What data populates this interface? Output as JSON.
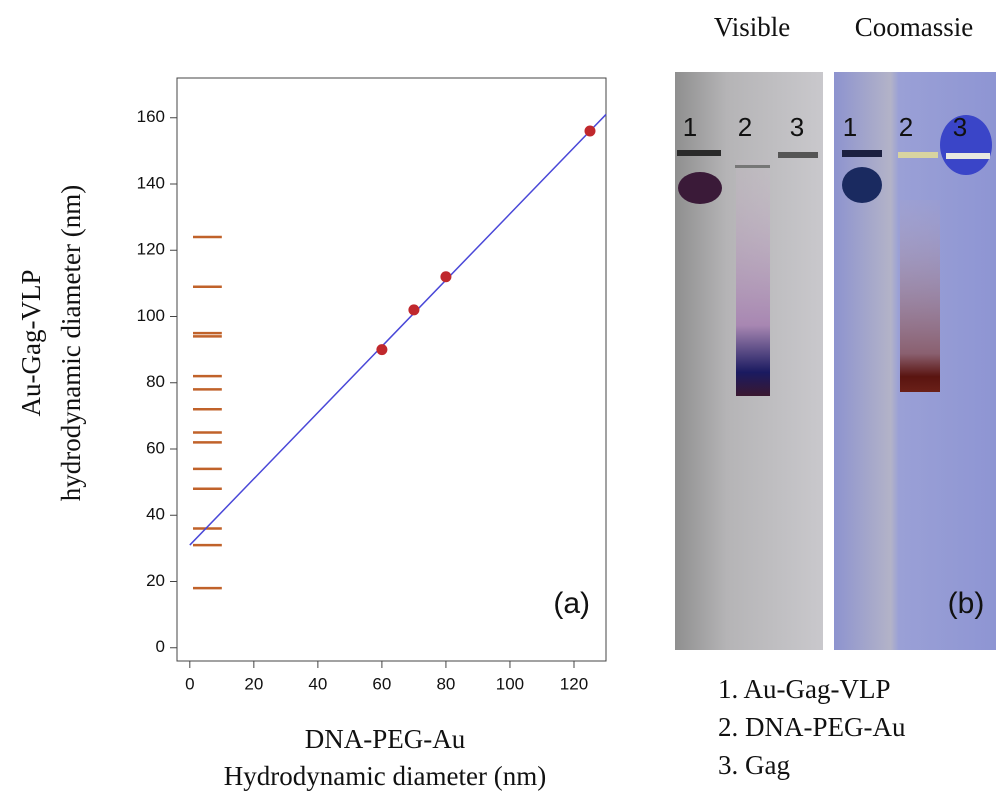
{
  "chart_data": {
    "type": "scatter",
    "y_label": [
      "Au-Gag-VLP",
      "hydrodynamic diameter (nm)"
    ],
    "x_label": [
      "DNA-PEG-Au",
      "Hydrodynamic diameter (nm)"
    ],
    "annotation": "(a)",
    "xlim": [
      -4,
      130
    ],
    "ylim": [
      -4,
      172
    ],
    "xticks": [
      0,
      20,
      40,
      60,
      80,
      100,
      120
    ],
    "yticks": [
      0,
      20,
      40,
      60,
      80,
      100,
      120,
      140,
      160
    ],
    "series": [
      {
        "type": "rug",
        "color": "#c0622a",
        "x_range": [
          1,
          10
        ],
        "values": [
          124,
          109,
          95,
          94,
          82,
          78,
          72,
          65,
          62,
          54,
          48,
          36,
          31,
          18
        ]
      },
      {
        "type": "line",
        "color": "#4a48d8",
        "x": [
          0,
          130
        ],
        "values": [
          31,
          161
        ]
      },
      {
        "type": "scatter",
        "color": "#c0282d",
        "x": [
          60,
          70,
          80,
          125
        ],
        "values": [
          90,
          102,
          112,
          156
        ]
      }
    ]
  },
  "panel_b": {
    "visible_label": "Visible",
    "coomassie_label": "Coomassie",
    "lanes": [
      "1",
      "2",
      "3"
    ],
    "annotation": "(b)",
    "legend": [
      "1.  Au-Gag-VLP",
      "2. DNA-PEG-Au",
      "3. Gag"
    ]
  }
}
